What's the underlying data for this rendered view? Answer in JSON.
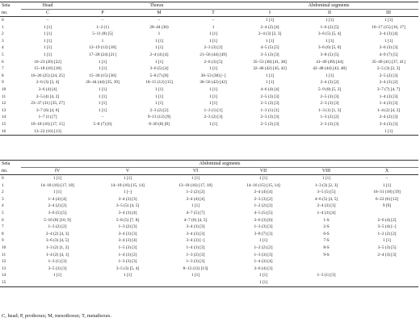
{
  "table1": {
    "seta_label": "Seta",
    "no_label": "no.",
    "group_headers": [
      "Head",
      "Thorax",
      "Abdominal segments"
    ],
    "columns": [
      "C",
      "P",
      "M",
      "T",
      "I",
      "II",
      "III"
    ],
    "rows": [
      [
        "0",
        "–",
        "–",
        "–",
        "–",
        "1 [1]",
        "1 [1]",
        "1 [1]"
      ],
      [
        "1",
        "1 [1]",
        "1–2 (1)",
        "28–44 (36)",
        "1",
        "2–4 (2) [4]",
        "1–6 (2) [5]",
        "10–17 (15) [16, 17]"
      ],
      [
        "2",
        "1 [1]",
        "5–11 (8) [5]",
        "1",
        "1 [1]",
        "2–4 (3) [2, 3]",
        "3–6 (5) [5, 4]",
        "2–4 (3) [4]"
      ],
      [
        "3",
        "1 [1]",
        "1",
        "1 [1]",
        "1 [1]",
        "1 [1]",
        "1 [1]",
        "1 [1]"
      ],
      [
        "4",
        "1 [1]",
        "12–19 (12) [18]",
        "1 [1]",
        "2–3 (3) [2]",
        "4–5 (5) [5]",
        "3–6 (6) [5, 6]",
        "2–6 (3) [3]"
      ],
      [
        "5",
        "1 [1]",
        "17–28 (24) [21]",
        "2–4 (4) [4]",
        "21–56 (44) [49]",
        "3–5 (3) [3]",
        "3–8 (5) [5]",
        "4–9 (7) [5]"
      ],
      [
        "6",
        "16–23 (20) [22]",
        "1 [1]",
        "1 [1]",
        "2–6 (3) [5]",
        "35–53 (38) [41, 38]",
        "41–49 (49) [44]",
        "35–49 (41) [37, 41]"
      ],
      [
        "7",
        "15–18 (16) [18]",
        "1 [1]",
        "3–6 (5) [4]",
        "1 [1]",
        "32–46 (42) [45, 42]",
        "42–48 (44) [43, 48]",
        "2–5 (3) [2, 3]"
      ],
      [
        "8",
        "16–26 (25) [24, 25]",
        "15–30 (15) [30]",
        "5–8 (7) [8]",
        "30–53 (38) [–]",
        "1 [1]",
        "1 [1]",
        "2–5 (2) [3]"
      ],
      [
        "9",
        "2–6 (3) [3, 4]",
        "26–44 (44) [35, 39]",
        "10–15 (12) [15]",
        "36–56 (42) [42]",
        "1 [1]",
        "2–4 (3) [2]",
        "2–4 (3) [2]"
      ],
      [
        "10",
        "3–6 (4) [4]",
        "1 [1]",
        "1 [1]",
        "1 [1]",
        "4–6 (4) [4]",
        "5–9 (8) [5, 2]",
        "3–7 (7) [4, 7]"
      ],
      [
        "11",
        "2–5 (4) [4, 2]",
        "1 [1]",
        "1 [1]",
        "1 [1]",
        "2–5 (3) [3]",
        "2–5 (3) [3]",
        "1–4 (3) [3]"
      ],
      [
        "12",
        "23–37 (31) [35, 27]",
        "1 [1]",
        "1 [1]",
        "1 [1]",
        "2–5 (3) [3]",
        "2–3 (3) [3]",
        "1–4 (3) [3]"
      ],
      [
        "13",
        "3–7 (6) [4, 6]",
        "1 [1]",
        "2–3 (2) [2]",
        "1–3 (1) [1]",
        "1–3 (1) [1]",
        "1–3 (1) [1, 3]",
        "1–4 (2) [4, 2]"
      ],
      [
        "14",
        "1–7 (1) [7]",
        "–",
        "9–13 (12) [9]",
        "2–3 (2) [3]",
        "2–3 (3) [3]",
        "1–3 (2) [2]",
        "2–4 (2) [3]"
      ],
      [
        "15",
        "10–18 (16) [17, 15]",
        "5–8 (7) [6]",
        "8–20 (8) [8]",
        "1 [1]",
        "2–5 (3) [3]",
        "2–3 (3) [3]",
        "3–4 (3) [3]"
      ],
      [
        "16",
        "13–22 (16) [13]",
        "",
        "",
        "",
        "",
        "",
        "1 [1]"
      ]
    ]
  },
  "table2": {
    "seta_label": "Seta",
    "no_label": "no.",
    "group_header": "Abdominal segments",
    "columns": [
      "IV",
      "V",
      "VI",
      "VII",
      "VIII",
      "X"
    ],
    "rows": [
      [
        "0",
        "1 [1]",
        "1 [1]",
        "1 [1]",
        "1 [1]",
        "1 [1]",
        "–"
      ],
      [
        "1",
        "14–18 (16) [17, 18]",
        "14–18 (16) [15, 14]",
        "13–18 (16) [17, 18]",
        "14–16 (15) [15, 14]",
        "1–3 (3) [2, 3]",
        "1 [1]"
      ],
      [
        "2",
        "1 [1]",
        "1 [–]",
        "1–2 (2) [2]",
        "2–4 (4) [4]",
        "3–5 (5) [5]",
        "16–31 (18) [19]"
      ],
      [
        "3",
        "1–4 (4) [4]",
        "3–4 (3) [3]",
        "3–4 (4) [4]",
        "2–3 (3) [2]",
        "4–6 (5) [4, 5]",
        "6–22 (6) [12]"
      ],
      [
        "4",
        "2–4 (2) [2]",
        "3–5 (5) [4, 5]",
        "1 [1]",
        "1–2 (2) [2]",
        "2–4 (3) [3]",
        "9 [9]"
      ],
      [
        "5",
        "3–6 (5) [5]",
        "3–4 (3) [4]",
        "4–7 (5) [7]",
        "4–5 (5) [5]",
        "1–4 (3) [4]",
        ""
      ],
      [
        "6",
        "5–10 (8) [10, 9]",
        "5–8 (5) [7, 8]",
        "4–7 (6) [4, 5]",
        "3–6 (3) [6]",
        "1-S",
        "2–6 (4) [2]"
      ],
      [
        "7",
        "1–3 (2) [2]",
        "1–3 (2) [3]",
        "3–4 (3) [3]",
        "1–3 (3) [3]",
        "2-S",
        "3–5 (4) [–]"
      ],
      [
        "8",
        "2–4 (2) [4, 3]",
        "3–4 (3) [3]",
        "3–4 (3) [3]",
        "3–8 (7) [3]",
        "6-S",
        "1–2 (2) [2]"
      ],
      [
        "9",
        "3–6 (3) [4, 5]",
        "3–4 (3) [4]",
        "3–4 (3) [–]",
        "1 [1]",
        "7-S",
        "1 [1]"
      ],
      [
        "10",
        "1–3 (2) [1, 2]",
        "1–5 (3) [3]",
        "1–4 (3) [3]",
        "1–2 (2) [2]",
        "8-S",
        "3–5 (3) [5]"
      ],
      [
        "11",
        "1–4 (2) [4, 1]",
        "1–4 (3) [2]",
        "1–3 (2) [3]",
        "1–3 (3) [3]",
        "9-S",
        "2–4 (3) [3]"
      ],
      [
        "12",
        "1–3 (1) [3]",
        "1–3 (3) [3]",
        "1–3 (3) [3]",
        "1–4 (3) [4]",
        "",
        ""
      ],
      [
        "13",
        "3–5 (3) [3]",
        "3–5 (3) [5, 4]",
        "8–13 (12) [13]",
        "3–6 (4) [3]",
        "",
        ""
      ],
      [
        "14",
        "1 [1]",
        "1 [1]",
        "1 [1]",
        "1 [1]",
        "1–3 (1) [3]",
        ""
      ],
      [
        "15",
        "",
        "",
        "",
        "1 [1]",
        "",
        ""
      ]
    ]
  },
  "footnote": "C, head; P, prothorax; M, mesothorax; T, metathorax."
}
